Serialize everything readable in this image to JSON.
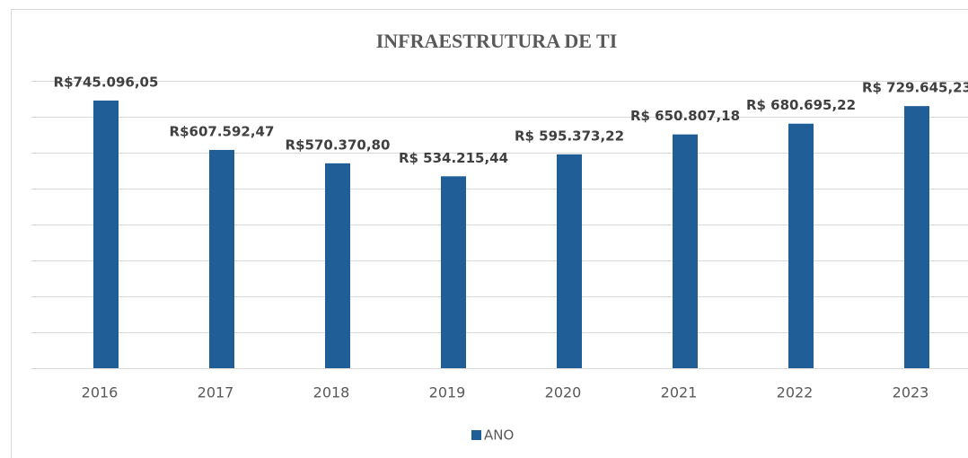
{
  "chart_data": {
    "type": "bar",
    "title": "INFRAESTRUTURA DE TI",
    "categories": [
      "2016",
      "2017",
      "2018",
      "2019",
      "2020",
      "2021",
      "2022",
      "2023"
    ],
    "series": [
      {
        "name": "ANO",
        "color": "#1f5e96",
        "values": [
          745096.05,
          607592.47,
          570370.8,
          534215.44,
          595373.22,
          650807.18,
          680695.22,
          729645.23
        ],
        "value_labels": [
          "R$745.096,05",
          "R$607.592,47",
          "R$570.370,80",
          "R$ 534.215,44",
          "R$ 595.373,22",
          "R$ 650.807,18",
          "R$ 680.695,22",
          "R$ 729.645,23"
        ]
      }
    ],
    "ylim": [
      0,
      800000
    ],
    "yticks": [
      0,
      100000,
      200000,
      300000,
      400000,
      500000,
      600000,
      700000,
      800000
    ],
    "grid": true,
    "legend": "bottom"
  }
}
